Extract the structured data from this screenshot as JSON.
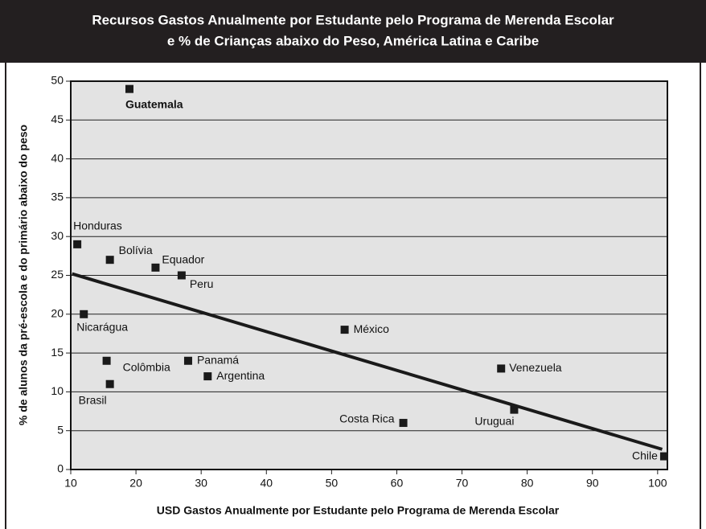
{
  "chart_data": {
    "type": "scatter",
    "title": [
      "Recursos Gastos Anualmente por Estudante pelo Programa de Merenda Escolar",
      "e % de Crianças abaixo do Peso, América Latina e Caribe"
    ],
    "xlabel": "USD Gastos Anualmente por Estudante pelo Programa de Merenda Escolar",
    "ylabel": "% de alunos da pré-escola e do primário abaixo do peso",
    "labels": [
      "Guatemala",
      "Honduras",
      "Bolívia",
      "Equador",
      "Peru",
      "Nicarágua",
      "México",
      "Colômbia",
      "Panamá",
      "Argentina",
      "Brasil",
      "Venezuela",
      "Uruguai",
      "Costa Rica",
      "Chile"
    ],
    "x": [
      19,
      11,
      16,
      23,
      27,
      12,
      52,
      15.5,
      28,
      31,
      16,
      76,
      78,
      61,
      101
    ],
    "y": [
      49,
      29,
      27,
      26,
      25,
      20,
      18,
      14,
      14,
      12,
      11,
      13,
      7.7,
      6,
      1.7
    ],
    "color": "#1a1a1a",
    "trend": {
      "x": [
        10.2,
        100.7
      ],
      "y": [
        25.2,
        2.6
      ]
    },
    "xlim": [
      10,
      101.5
    ],
    "ylim": [
      0,
      50
    ],
    "xticks": [
      10,
      20,
      30,
      40,
      50,
      60,
      70,
      80,
      90,
      100
    ],
    "yticks": [
      0,
      5,
      10,
      15,
      20,
      25,
      30,
      35,
      40,
      45,
      50
    ],
    "grid": true
  }
}
